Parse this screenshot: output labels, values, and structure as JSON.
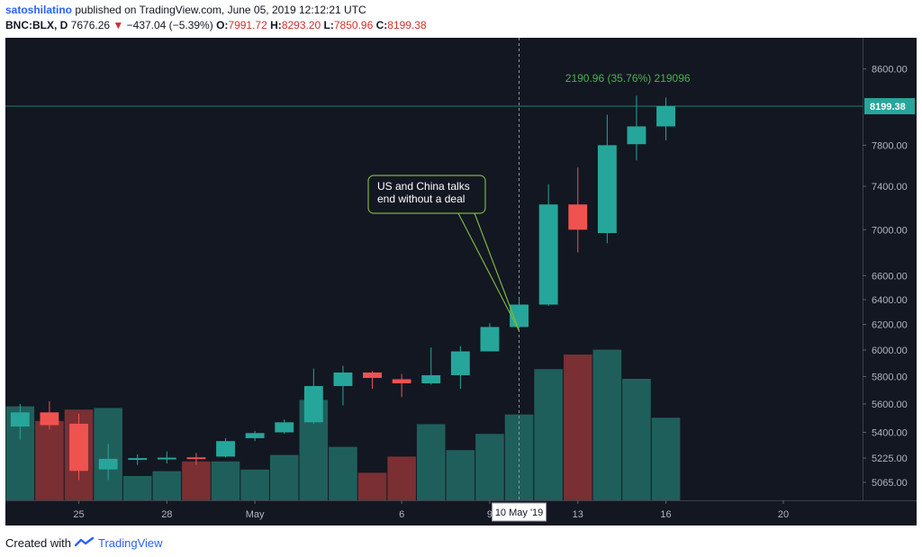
{
  "header": {
    "author": "satoshilatino",
    "published": "published on TradingView.com, June 05, 2019 12:12:21 UTC",
    "symbol": "BNC:BLX, D",
    "last": "7676.26",
    "down_arrow": "▼",
    "change": "−437.04 (−5.39%)",
    "o_label": "O:",
    "o_value": "7991.72",
    "h_label": "H:",
    "h_value": "8293.20",
    "l_label": "L:",
    "l_value": "7850.96",
    "c_label": "C:",
    "c_value": "8199.38"
  },
  "colors": {
    "up": "#26a69a",
    "down": "#ef5350",
    "vol_up": "#1f5f5b",
    "vol_down": "#7a2f33",
    "background": "#131722",
    "text": "#b2b5be",
    "measure": "#4caf50",
    "annotation": "#7cb342"
  },
  "chart_data": {
    "type": "candlestick",
    "y_axis": {
      "scale": "log",
      "range": [
        4950,
        8950
      ],
      "ticks": [
        5065,
        5225,
        5400,
        5600,
        5800,
        6000,
        6200,
        6400,
        6600,
        7000,
        7400,
        7800,
        8600
      ],
      "tick_labels": [
        "5065.00",
        "5225.00",
        "5400.00",
        "5600.00",
        "5800.00",
        "6000.00",
        "6200.00",
        "6400.00",
        "6600.00",
        "7000.00",
        "7400.00",
        "7800.00",
        "8600.00"
      ]
    },
    "x_axis": {
      "range": [
        0,
        29.2
      ],
      "ticks": [
        2.5,
        5.5,
        8.5,
        13.5,
        16.5,
        19.5,
        22.5,
        26.5
      ],
      "tick_labels": [
        "25",
        "28",
        "May",
        "6",
        "9",
        "13",
        "16",
        "20"
      ],
      "crosshair_label": "10 May '19",
      "crosshair_x": 17.5
    },
    "last_price_label": "8199.38",
    "last_price": 8199.38,
    "candles": [
      {
        "x": 0.5,
        "o": 5440,
        "h": 5600,
        "l": 5350,
        "c": 5540
      },
      {
        "x": 1.5,
        "o": 5540,
        "h": 5620,
        "l": 5420,
        "c": 5450
      },
      {
        "x": 2.5,
        "o": 5460,
        "h": 5530,
        "l": 5080,
        "c": 5140
      },
      {
        "x": 3.5,
        "o": 5150,
        "h": 5320,
        "l": 5080,
        "c": 5220
      },
      {
        "x": 4.5,
        "o": 5215,
        "h": 5250,
        "l": 5180,
        "c": 5225
      },
      {
        "x": 5.5,
        "o": 5218,
        "h": 5270,
        "l": 5190,
        "c": 5228
      },
      {
        "x": 6.5,
        "o": 5230,
        "h": 5260,
        "l": 5180,
        "c": 5222
      },
      {
        "x": 7.5,
        "o": 5235,
        "h": 5360,
        "l": 5230,
        "c": 5340
      },
      {
        "x": 8.5,
        "o": 5360,
        "h": 5410,
        "l": 5340,
        "c": 5395
      },
      {
        "x": 9.5,
        "o": 5400,
        "h": 5490,
        "l": 5390,
        "c": 5470
      },
      {
        "x": 10.5,
        "o": 5470,
        "h": 5860,
        "l": 5460,
        "c": 5730
      },
      {
        "x": 11.5,
        "o": 5730,
        "h": 5880,
        "l": 5590,
        "c": 5830
      },
      {
        "x": 12.5,
        "o": 5830,
        "h": 5840,
        "l": 5710,
        "c": 5790
      },
      {
        "x": 13.5,
        "o": 5780,
        "h": 5820,
        "l": 5650,
        "c": 5750
      },
      {
        "x": 14.5,
        "o": 5750,
        "h": 6020,
        "l": 5740,
        "c": 5810
      },
      {
        "x": 15.5,
        "o": 5810,
        "h": 6030,
        "l": 5710,
        "c": 5990
      },
      {
        "x": 16.5,
        "o": 5990,
        "h": 6210,
        "l": 5990,
        "c": 6180
      },
      {
        "x": 17.5,
        "o": 6180,
        "h": 6410,
        "l": 6170,
        "c": 6360
      },
      {
        "x": 18.5,
        "o": 6360,
        "h": 7420,
        "l": 6350,
        "c": 7230
      },
      {
        "x": 19.5,
        "o": 7230,
        "h": 7580,
        "l": 6800,
        "c": 7000
      },
      {
        "x": 20.5,
        "o": 6970,
        "h": 8110,
        "l": 6880,
        "c": 7800
      },
      {
        "x": 21.5,
        "o": 7810,
        "h": 8310,
        "l": 7650,
        "c": 7990
      },
      {
        "x": 22.5,
        "o": 7990,
        "h": 8290,
        "l": 7850,
        "c": 8200
      }
    ],
    "volume": [
      {
        "x": 0.5,
        "v": 0.58,
        "up": true
      },
      {
        "x": 1.5,
        "v": 0.49,
        "up": false
      },
      {
        "x": 2.5,
        "v": 0.56,
        "up": false
      },
      {
        "x": 3.5,
        "v": 0.57,
        "up": true
      },
      {
        "x": 4.5,
        "v": 0.15,
        "up": true
      },
      {
        "x": 5.5,
        "v": 0.18,
        "up": true
      },
      {
        "x": 6.5,
        "v": 0.24,
        "up": false
      },
      {
        "x": 7.5,
        "v": 0.24,
        "up": true
      },
      {
        "x": 8.5,
        "v": 0.19,
        "up": true
      },
      {
        "x": 9.5,
        "v": 0.28,
        "up": true
      },
      {
        "x": 10.5,
        "v": 0.62,
        "up": true
      },
      {
        "x": 11.5,
        "v": 0.33,
        "up": true
      },
      {
        "x": 12.5,
        "v": 0.17,
        "up": false
      },
      {
        "x": 13.5,
        "v": 0.27,
        "up": false
      },
      {
        "x": 14.5,
        "v": 0.47,
        "up": true
      },
      {
        "x": 15.5,
        "v": 0.31,
        "up": true
      },
      {
        "x": 16.5,
        "v": 0.41,
        "up": true
      },
      {
        "x": 17.5,
        "v": 0.53,
        "up": true
      },
      {
        "x": 18.5,
        "v": 0.81,
        "up": true
      },
      {
        "x": 19.5,
        "v": 0.9,
        "up": false
      },
      {
        "x": 20.5,
        "v": 0.93,
        "up": true
      },
      {
        "x": 21.5,
        "v": 0.75,
        "up": true
      },
      {
        "x": 22.5,
        "v": 0.51,
        "up": true
      }
    ],
    "measure_label": "2190.96 (35.76%) 219096",
    "annotation": "US and China talks end without a deal",
    "annotation_lines": [
      "US and China talks",
      "end without a deal"
    ],
    "annotation_target": {
      "x": 17.5,
      "y": 6150
    }
  },
  "footer": {
    "created_with": "Created with",
    "brand": "TradingView"
  }
}
